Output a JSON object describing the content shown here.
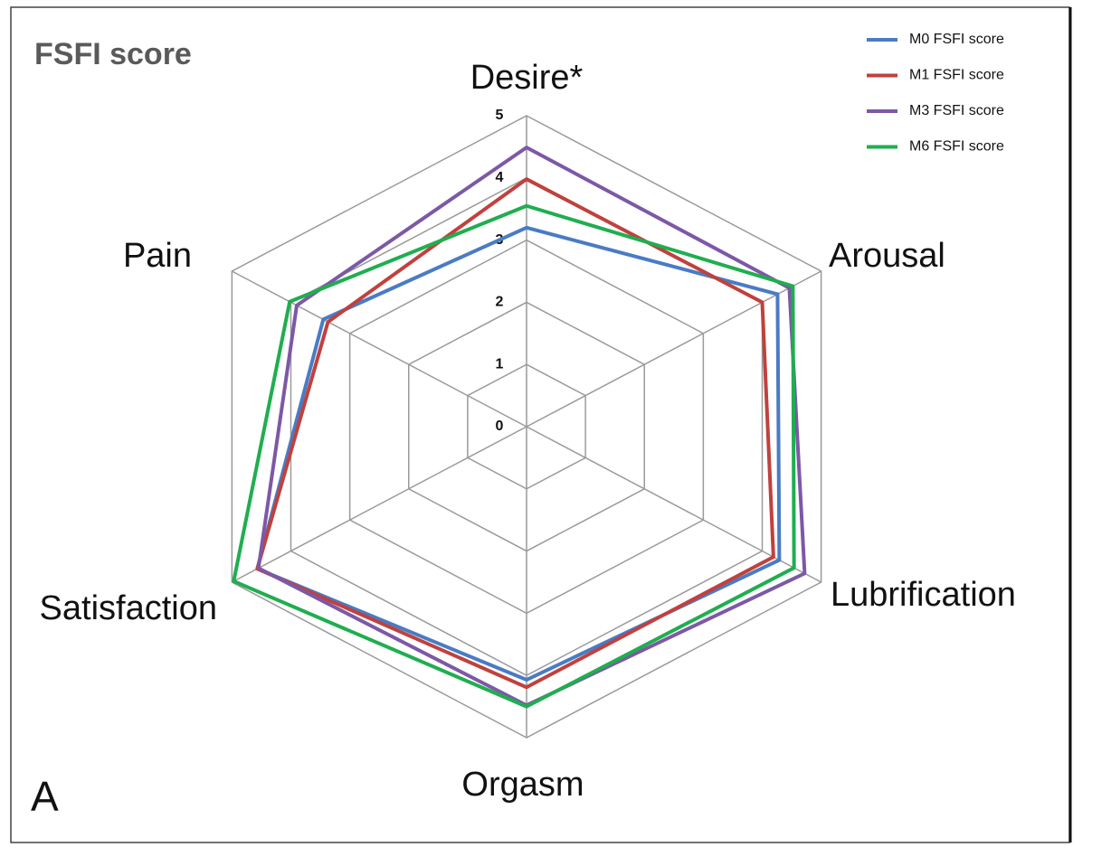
{
  "chart_data": {
    "type": "radar",
    "title": "FSFI score",
    "panel_label": "A",
    "categories": [
      "Desire*",
      "Arousal",
      "Lubrification",
      "Orgasm",
      "Satisfaction",
      "Pain"
    ],
    "rlim": [
      0,
      5
    ],
    "rticks": [
      0,
      1,
      2,
      3,
      4,
      5
    ],
    "grid": true,
    "legend": "upper right",
    "series": [
      {
        "name": "M0 FSFI score",
        "color": "#4a7bc4",
        "values": [
          3.2,
          4.26,
          4.29,
          4.07,
          4.57,
          3.45
        ]
      },
      {
        "name": "M1 FSFI score",
        "color": "#c0413d",
        "values": [
          3.98,
          4.0,
          4.19,
          4.19,
          4.57,
          3.37
        ]
      },
      {
        "name": "M3 FSFI score",
        "color": "#7d58a6",
        "values": [
          4.49,
          4.46,
          4.72,
          4.48,
          4.55,
          3.9
        ]
      },
      {
        "name": "M6 FSFI score",
        "color": "#1fae4f",
        "values": [
          3.55,
          4.52,
          4.54,
          4.5,
          4.97,
          4.02
        ]
      }
    ]
  }
}
